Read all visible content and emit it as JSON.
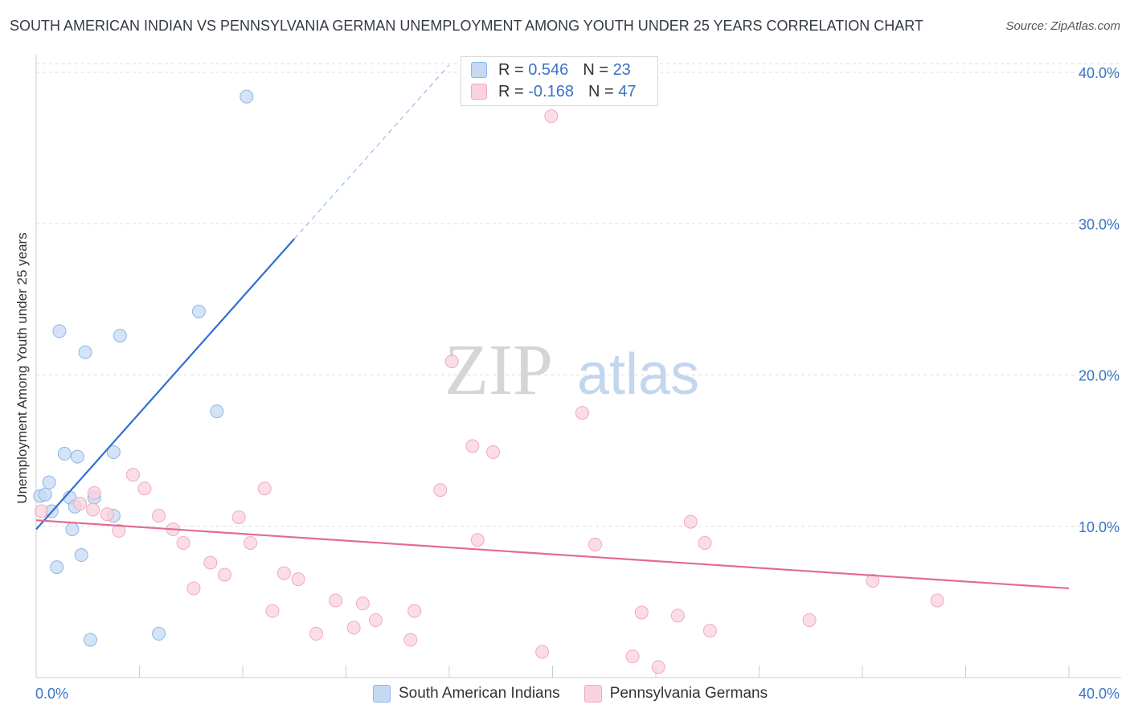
{
  "chart_data": {
    "type": "scatter",
    "title": "SOUTH AMERICAN INDIAN VS PENNSYLVANIA GERMAN UNEMPLOYMENT AMONG YOUTH UNDER 25 YEARS CORRELATION CHART",
    "source": "Source: ZipAtlas.com",
    "ylabel": "Unemployment Among Youth under 25 years",
    "xlabel": "",
    "xlim": [
      0,
      40
    ],
    "ylim": [
      0,
      40.8
    ],
    "x_tick_labels": [
      "0.0%",
      "40.0%"
    ],
    "y_ticks": [
      10,
      20,
      30,
      40
    ],
    "y_tick_labels": [
      "10.0%",
      "20.0%",
      "30.0%",
      "40.0%"
    ],
    "watermark": "ZIPatlas",
    "legend": [
      {
        "label": "R = ",
        "r": "0.546",
        "n_label": "N = ",
        "n": "23",
        "series": "South American Indians"
      },
      {
        "label": "R = ",
        "r": "-0.168",
        "n_label": "N = ",
        "n": "47",
        "series": "Pennsylvania Germans"
      }
    ],
    "series": [
      {
        "name": "South American Indians",
        "color": "#8fb6e8",
        "fill": "#c5d9f2",
        "line_color": "#2f6fd0",
        "trend": {
          "x0": 0.0,
          "y0": 9.8,
          "x1": 10.0,
          "y1": 29.0,
          "dash_to_x": 16.0,
          "dash_to_y": 40.5
        },
        "points": [
          [
            0.15,
            12.0
          ],
          [
            0.35,
            12.1
          ],
          [
            0.5,
            12.9
          ],
          [
            0.6,
            11.0
          ],
          [
            0.8,
            7.3
          ],
          [
            0.9,
            22.9
          ],
          [
            1.1,
            14.8
          ],
          [
            1.3,
            11.9
          ],
          [
            1.4,
            9.8
          ],
          [
            1.5,
            11.3
          ],
          [
            1.6,
            14.6
          ],
          [
            1.75,
            8.1
          ],
          [
            1.9,
            21.5
          ],
          [
            2.1,
            2.5
          ],
          [
            2.25,
            11.9
          ],
          [
            3.0,
            14.9
          ],
          [
            3.0,
            10.7
          ],
          [
            3.25,
            22.6
          ],
          [
            4.75,
            2.9
          ],
          [
            6.3,
            24.2
          ],
          [
            7.0,
            17.6
          ],
          [
            8.15,
            38.4
          ]
        ]
      },
      {
        "name": "Pennsylvania Germans",
        "color": "#f0a9c1",
        "fill": "#fad2df",
        "line_color": "#e36a96",
        "trend": {
          "x0": 0.0,
          "y0": 10.4,
          "x1": 40.0,
          "y1": 5.9
        },
        "points": [
          [
            0.2,
            11.0
          ],
          [
            1.7,
            11.5
          ],
          [
            2.2,
            11.1
          ],
          [
            2.25,
            12.2
          ],
          [
            2.75,
            10.8
          ],
          [
            3.2,
            9.7
          ],
          [
            3.75,
            13.4
          ],
          [
            4.2,
            12.5
          ],
          [
            4.75,
            10.7
          ],
          [
            5.3,
            9.8
          ],
          [
            5.7,
            8.9
          ],
          [
            6.1,
            5.9
          ],
          [
            6.75,
            7.6
          ],
          [
            7.3,
            6.8
          ],
          [
            7.85,
            10.6
          ],
          [
            8.3,
            8.9
          ],
          [
            8.85,
            12.5
          ],
          [
            9.15,
            4.4
          ],
          [
            9.6,
            6.9
          ],
          [
            10.15,
            6.5
          ],
          [
            10.85,
            2.9
          ],
          [
            11.6,
            5.1
          ],
          [
            12.3,
            3.3
          ],
          [
            12.65,
            4.9
          ],
          [
            13.15,
            3.8
          ],
          [
            14.5,
            2.5
          ],
          [
            14.65,
            4.4
          ],
          [
            15.65,
            12.4
          ],
          [
            16.1,
            20.9
          ],
          [
            16.9,
            15.3
          ],
          [
            17.1,
            9.1
          ],
          [
            17.7,
            14.9
          ],
          [
            19.6,
            1.7
          ],
          [
            19.95,
            37.1
          ],
          [
            21.15,
            17.5
          ],
          [
            21.65,
            8.8
          ],
          [
            23.1,
            1.4
          ],
          [
            23.45,
            4.3
          ],
          [
            24.1,
            0.7
          ],
          [
            24.85,
            4.1
          ],
          [
            25.35,
            10.3
          ],
          [
            25.9,
            8.9
          ],
          [
            26.1,
            3.1
          ],
          [
            29.95,
            3.8
          ],
          [
            32.4,
            6.4
          ],
          [
            34.9,
            5.1
          ]
        ]
      }
    ],
    "bottom_legend": [
      "South American Indians",
      "Pennsylvania Germans"
    ]
  }
}
